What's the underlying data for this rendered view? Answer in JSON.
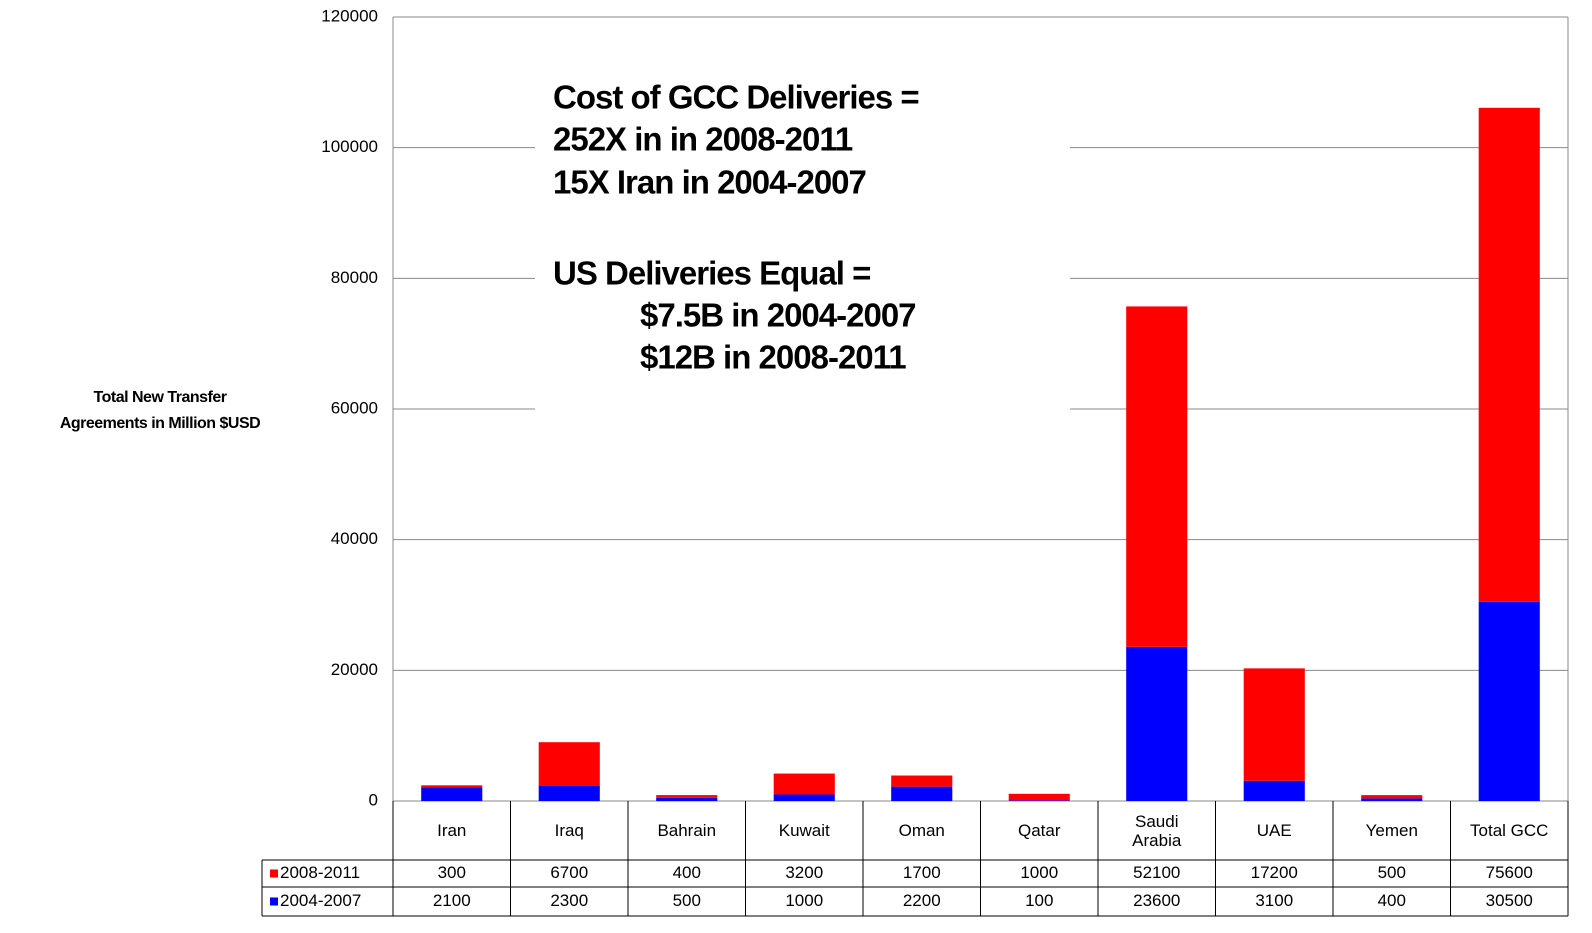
{
  "chart_data": {
    "type": "stacked_bar",
    "y_label": [
      "Total New Transfer",
      "Agreements in Million $USD"
    ],
    "annotations": [
      "Cost of GCC Deliveries =",
      "252X in in 2008-2011",
      "15X Iran in 2004-2007",
      "US Deliveries Equal =",
      "$7.5B in 2004-2007",
      "$12B in 2008-2011"
    ],
    "categories": [
      "Iran",
      "Iraq",
      "Bahrain",
      "Kuwait",
      "Oman",
      "Qatar",
      "Saudi Arabia",
      "UAE",
      "Yemen",
      "Total GCC"
    ],
    "series": [
      {
        "name": "2008-2011",
        "color": "#ff0000",
        "values": [
          300,
          6700,
          400,
          3200,
          1700,
          1000,
          52100,
          17200,
          500,
          75600
        ]
      },
      {
        "name": "2004-2007",
        "color": "#0000ff",
        "values": [
          2100,
          2300,
          500,
          1000,
          2200,
          100,
          23600,
          3100,
          400,
          30500
        ]
      }
    ],
    "ylim": [
      0,
      120000
    ],
    "yticks": [
      0,
      20000,
      40000,
      60000,
      80000,
      100000,
      120000
    ],
    "grid": true,
    "data_table": true
  }
}
